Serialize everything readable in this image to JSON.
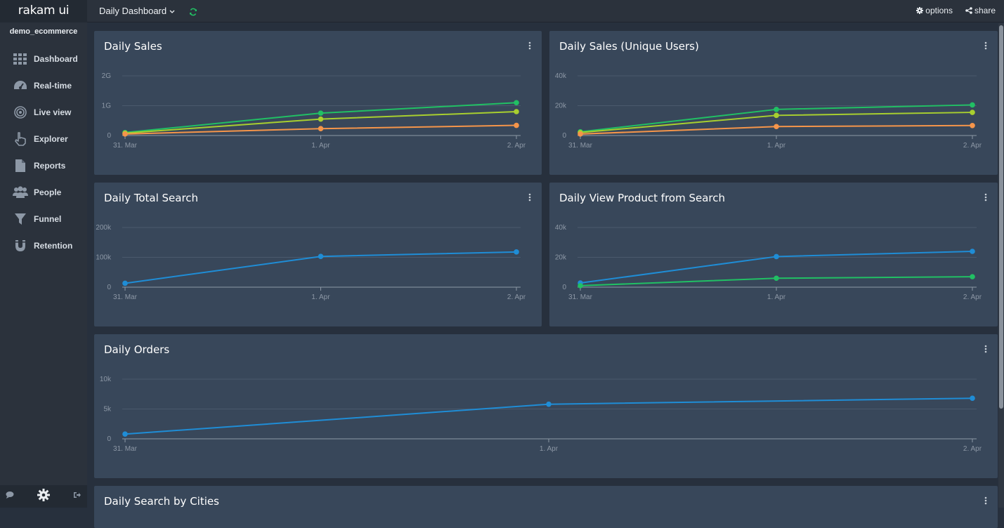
{
  "app": {
    "brand": "rakam ui",
    "project": "demo_ecommerce"
  },
  "sidebar": {
    "items": [
      {
        "label": "Dashboard",
        "icon": "grid-icon"
      },
      {
        "label": "Real-time",
        "icon": "speedometer-icon"
      },
      {
        "label": "Live view",
        "icon": "target-icon"
      },
      {
        "label": "Explorer",
        "icon": "hand-pointer-icon"
      },
      {
        "label": "Reports",
        "icon": "file-icon"
      },
      {
        "label": "People",
        "icon": "users-icon"
      },
      {
        "label": "Funnel",
        "icon": "filter-icon"
      },
      {
        "label": "Retention",
        "icon": "magnet-icon"
      }
    ]
  },
  "topbar": {
    "dashboard_title": "Daily Dashboard",
    "options_label": "options",
    "share_label": "share"
  },
  "colors": {
    "blue": "#1f8dd6",
    "green": "#21c064",
    "lime": "#a8cf2f",
    "orange": "#f5954a",
    "card": "#38475a"
  },
  "chart_data": [
    {
      "type": "line",
      "title": "Daily Sales",
      "x": [
        "31. Mar",
        "1. Apr",
        "2. Apr"
      ],
      "y_ticks": [
        "0",
        "1G",
        "2G"
      ],
      "ylim": [
        0,
        2000000000
      ],
      "series": [
        {
          "values": [
            100000000,
            750000000,
            1100000000
          ],
          "color": "#21c064"
        },
        {
          "values": [
            80000000,
            550000000,
            800000000
          ],
          "color": "#a8cf2f"
        },
        {
          "values": [
            50000000,
            230000000,
            340000000
          ],
          "color": "#f5954a"
        }
      ]
    },
    {
      "type": "line",
      "title": "Daily Sales (Unique Users)",
      "x": [
        "31. Mar",
        "1. Apr",
        "2. Apr"
      ],
      "y_ticks": [
        "0",
        "20k",
        "40k"
      ],
      "ylim": [
        0,
        40000
      ],
      "series": [
        {
          "values": [
            2500,
            17500,
            20500
          ],
          "color": "#21c064"
        },
        {
          "values": [
            2000,
            13500,
            15500
          ],
          "color": "#a8cf2f"
        },
        {
          "values": [
            1000,
            6000,
            6700
          ],
          "color": "#f5954a"
        }
      ]
    },
    {
      "type": "line",
      "title": "Daily Total Search",
      "x": [
        "31. Mar",
        "1. Apr",
        "2. Apr"
      ],
      "y_ticks": [
        "0",
        "100k",
        "200k"
      ],
      "ylim": [
        0,
        200000
      ],
      "series": [
        {
          "values": [
            13000,
            103000,
            118000
          ],
          "color": "#1f8dd6"
        }
      ]
    },
    {
      "type": "line",
      "title": "Daily View Product from Search",
      "x": [
        "31. Mar",
        "1. Apr",
        "2. Apr"
      ],
      "y_ticks": [
        "0",
        "20k",
        "40k"
      ],
      "ylim": [
        0,
        40000
      ],
      "series": [
        {
          "values": [
            2800,
            20500,
            24000
          ],
          "color": "#1f8dd6"
        },
        {
          "values": [
            1000,
            6000,
            7000
          ],
          "color": "#21c064"
        }
      ]
    },
    {
      "type": "line",
      "title": "Daily Orders",
      "x": [
        "31. Mar",
        "1. Apr",
        "2. Apr"
      ],
      "y_ticks": [
        "0",
        "5k",
        "10k"
      ],
      "ylim": [
        0,
        10000
      ],
      "series": [
        {
          "values": [
            800,
            5800,
            6800
          ],
          "color": "#1f8dd6"
        }
      ]
    },
    {
      "type": "line",
      "title": "Daily Search by Cities",
      "x": [],
      "y_ticks": [],
      "series": []
    }
  ]
}
